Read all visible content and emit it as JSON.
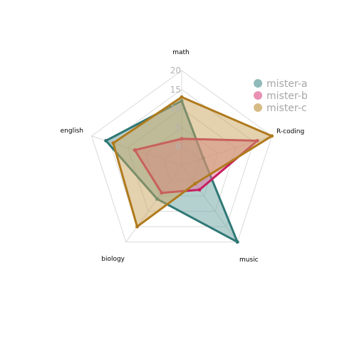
{
  "chart_data": {
    "type": "radar",
    "axes": [
      "math",
      "R-coding",
      "music",
      "biology",
      "english"
    ],
    "ticks": [
      0,
      5,
      10,
      15,
      20
    ],
    "range": [
      -5,
      20
    ],
    "grid": true,
    "legend_position": "top-right",
    "series": [
      {
        "name": "mister-a",
        "values": [
          12,
          1,
          20,
          6,
          16
        ],
        "color": "#2f7876",
        "fill": "#69a3a2"
      },
      {
        "name": "mister-b",
        "values": [
          2,
          16,
          3,
          4,
          8
        ],
        "color": "#c71f5d",
        "fill": "#e06c9b"
      },
      {
        "name": "mister-c",
        "values": [
          13,
          20,
          1,
          15,
          14
        ],
        "color": "#b07a1c",
        "fill": "#c9a45e"
      }
    ]
  }
}
